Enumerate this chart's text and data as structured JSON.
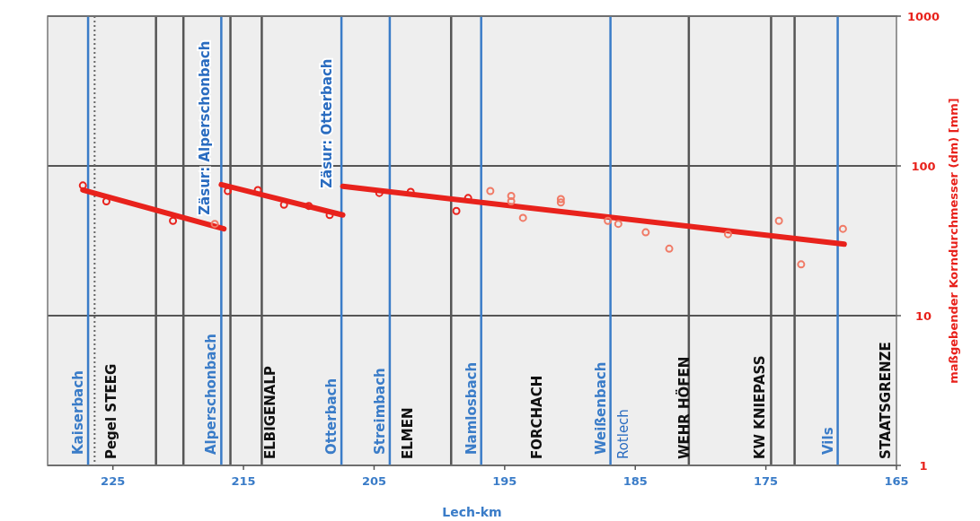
{
  "chart_data": {
    "type": "line",
    "xlabel": "Lech-km",
    "ylabel": "maßgebender Korndurchmesser (dm) [mm]",
    "xlim": [
      230,
      165
    ],
    "xticks": [
      225,
      215,
      205,
      195,
      185,
      175,
      165
    ],
    "ylim": [
      1,
      1000
    ],
    "yticks": [
      1,
      10,
      100,
      1000
    ],
    "log": "y",
    "grid": "y",
    "series": [
      {
        "color": "#e8221c",
        "x": [
          227.3,
          216.5
        ],
        "values": [
          69,
          38
        ]
      },
      {
        "color": "#e8221c",
        "x": [
          216.7,
          207.4
        ],
        "values": [
          75,
          47
        ]
      },
      {
        "color": "#e8221c",
        "x": [
          207.4,
          169.0
        ],
        "values": [
          73,
          30
        ]
      },
      {
        "type": "scatter",
        "color": "#e8221c",
        "marker": "circle",
        "x": [
          227.3,
          225.5,
          220.4,
          216.2,
          213.9,
          211.9,
          210.0,
          208.4,
          204.6,
          202.2,
          198.7,
          197.8
        ],
        "values": [
          74,
          58,
          43,
          68,
          69,
          55,
          54,
          47,
          66,
          67,
          50,
          61
        ]
      },
      {
        "type": "scatter",
        "color": "#f07a66",
        "marker": "circle",
        "x": [
          217.2,
          196.1,
          194.5,
          194.5,
          193.6,
          190.7,
          190.7,
          187.1,
          186.3,
          184.2,
          182.4,
          177.9,
          174.0,
          172.3,
          169.1
        ],
        "values": [
          41,
          68,
          63,
          58,
          45,
          60,
          57,
          43,
          41,
          36,
          28,
          35,
          43,
          22,
          38
        ]
      }
    ],
    "ref_lines": [
      {
        "axis": "x",
        "value": 226.9,
        "label": "Kaiserbach",
        "color": "#3a7cc8"
      },
      {
        "axis": "x",
        "value": 226.4,
        "label": null,
        "color": "#666666",
        "line_style": "dotted"
      },
      {
        "axis": "x",
        "value": 221.7,
        "label": null,
        "color": "#555555"
      },
      {
        "axis": "x",
        "value": 219.6,
        "label": null,
        "color": "#555555"
      },
      {
        "axis": "x",
        "value": 216.7,
        "label": "Alperschonbach",
        "color": "#3a7cc8"
      },
      {
        "axis": "x",
        "value": 216.0,
        "label": null,
        "color": "#555555"
      },
      {
        "axis": "x",
        "value": 213.6,
        "label": null,
        "color": "#555555"
      },
      {
        "axis": "x",
        "value": 207.5,
        "label": "Otterbach",
        "color": "#3a7cc8"
      },
      {
        "axis": "x",
        "value": 203.8,
        "label": "Streimbach",
        "color": "#3a7cc8"
      },
      {
        "axis": "x",
        "value": 199.1,
        "label": null,
        "color": "#555555"
      },
      {
        "axis": "x",
        "value": 196.8,
        "label": "Namlosbach",
        "color": "#3a7cc8"
      },
      {
        "axis": "x",
        "value": 186.9,
        "label": "Weißenbach",
        "color": "#3a7cc8"
      },
      {
        "axis": "x",
        "value": 180.9,
        "label": null,
        "color": "#555555"
      },
      {
        "axis": "x",
        "value": 174.6,
        "label": null,
        "color": "#555555"
      },
      {
        "axis": "x",
        "value": 172.8,
        "label": null,
        "color": "#555555"
      },
      {
        "axis": "x",
        "value": 169.5,
        "label": "Vils",
        "color": "#3a7cc8"
      }
    ],
    "annotations": [
      "Pegel STEEG",
      "ELBIGENALP",
      "ELMEN",
      "FORCHACH",
      "Rotlech",
      "WEHR  HÖFEN",
      "KW  KNIEPASS",
      "STAATSGRENZE",
      "Zäsur: Alperschonbach",
      "Zäsur: Otterbach"
    ]
  }
}
